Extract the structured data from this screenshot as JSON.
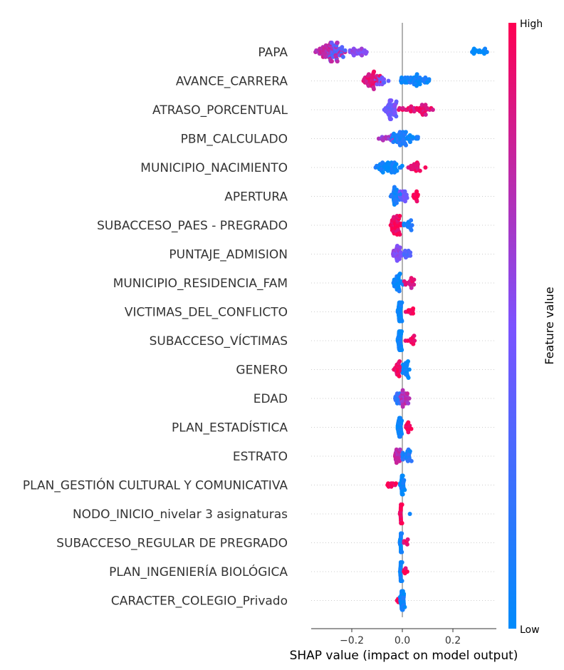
{
  "chart_data": {
    "type": "scatter",
    "subtype": "shap-beeswarm",
    "xlabel": "SHAP value (impact on model output)",
    "x_ticks": [
      -0.2,
      0.0,
      0.2
    ],
    "x_tick_labels": [
      "−0.2",
      "0.0",
      "0.2"
    ],
    "xlim": [
      -0.37,
      0.4
    ],
    "zero_line": 0,
    "colorbar": {
      "label": "Feature value",
      "high_label": "High",
      "low_label": "Low",
      "low_color": "#008bfb",
      "mid_color": "#7c52ff",
      "high_color": "#ff0052"
    },
    "features": [
      {
        "name": "PAPA",
        "clusters": [
          {
            "lo": -0.35,
            "hi": -0.22,
            "n": 60,
            "c": 0.75
          },
          {
            "lo": -0.3,
            "hi": -0.22,
            "n": 25,
            "c": 0.35
          },
          {
            "lo": -0.22,
            "hi": -0.13,
            "n": 22,
            "c": 0.55
          },
          {
            "lo": 0.27,
            "hi": 0.34,
            "n": 14,
            "c": 0.0
          }
        ]
      },
      {
        "name": "AVANCE_CARRERA",
        "clusters": [
          {
            "lo": -0.16,
            "hi": -0.07,
            "n": 40,
            "c": 0.88
          },
          {
            "lo": -0.12,
            "hi": -0.05,
            "n": 12,
            "c": 0.45
          },
          {
            "lo": -0.02,
            "hi": 0.12,
            "n": 45,
            "c": 0.08
          }
        ]
      },
      {
        "name": "ATRASO_PORCENTUAL",
        "clusters": [
          {
            "lo": -0.08,
            "hi": -0.01,
            "n": 45,
            "c": 0.45
          },
          {
            "lo": -0.02,
            "hi": 0.13,
            "n": 38,
            "c": 0.9
          }
        ]
      },
      {
        "name": "PBM_CALCULADO",
        "clusters": [
          {
            "lo": -0.1,
            "hi": -0.02,
            "n": 14,
            "c": 0.65
          },
          {
            "lo": -0.05,
            "hi": 0.04,
            "n": 40,
            "c": 0.1
          },
          {
            "lo": 0.02,
            "hi": 0.07,
            "n": 8,
            "c": 0.05
          }
        ]
      },
      {
        "name": "MUNICIPIO_NACIMIENTO",
        "clusters": [
          {
            "lo": -0.11,
            "hi": 0.01,
            "n": 45,
            "c": 0.05
          },
          {
            "lo": 0.01,
            "hi": 0.1,
            "n": 20,
            "c": 0.92
          }
        ]
      },
      {
        "name": "APERTURA",
        "clusters": [
          {
            "lo": -0.05,
            "hi": 0.0,
            "n": 30,
            "c": 0.1
          },
          {
            "lo": -0.01,
            "hi": 0.02,
            "n": 15,
            "c": 0.45
          },
          {
            "lo": 0.04,
            "hi": 0.07,
            "n": 12,
            "c": 0.97
          }
        ]
      },
      {
        "name": "SUBACCESO_PAES - PREGRADO",
        "clusters": [
          {
            "lo": -0.05,
            "hi": 0.0,
            "n": 40,
            "c": 0.95
          },
          {
            "lo": 0.0,
            "hi": 0.05,
            "n": 14,
            "c": 0.08
          }
        ]
      },
      {
        "name": "PUNTAJE_ADMISION",
        "clusters": [
          {
            "lo": -0.04,
            "hi": 0.01,
            "n": 25,
            "c": 0.55
          },
          {
            "lo": 0.0,
            "hi": 0.04,
            "n": 12,
            "c": 0.3
          }
        ]
      },
      {
        "name": "MUNICIPIO_RESIDENCIA_FAM",
        "clusters": [
          {
            "lo": -0.04,
            "hi": 0.01,
            "n": 30,
            "c": 0.05
          },
          {
            "lo": 0.0,
            "hi": 0.06,
            "n": 14,
            "c": 0.85
          }
        ]
      },
      {
        "name": "VICTIMAS_DEL_CONFLICTO",
        "clusters": [
          {
            "lo": -0.02,
            "hi": 0.0,
            "n": 35,
            "c": 0.05
          },
          {
            "lo": 0.01,
            "hi": 0.05,
            "n": 10,
            "c": 0.98
          }
        ]
      },
      {
        "name": "SUBACCESO_VÍCTIMAS",
        "clusters": [
          {
            "lo": -0.02,
            "hi": 0.0,
            "n": 40,
            "c": 0.04
          },
          {
            "lo": 0.01,
            "hi": 0.06,
            "n": 12,
            "c": 0.95
          }
        ]
      },
      {
        "name": "GENERO",
        "clusters": [
          {
            "lo": -0.04,
            "hi": 0.0,
            "n": 22,
            "c": 0.95
          },
          {
            "lo": 0.0,
            "hi": 0.03,
            "n": 22,
            "c": 0.05
          }
        ]
      },
      {
        "name": "EDAD",
        "clusters": [
          {
            "lo": -0.04,
            "hi": 0.0,
            "n": 15,
            "c": 0.2
          },
          {
            "lo": -0.01,
            "hi": 0.03,
            "n": 25,
            "c": 0.7
          }
        ]
      },
      {
        "name": "PLAN_ESTADÍSTICA",
        "clusters": [
          {
            "lo": -0.02,
            "hi": 0.0,
            "n": 35,
            "c": 0.05
          },
          {
            "lo": 0.01,
            "hi": 0.04,
            "n": 10,
            "c": 0.97
          }
        ]
      },
      {
        "name": "ESTRATO",
        "clusters": [
          {
            "lo": -0.04,
            "hi": 0.0,
            "n": 18,
            "c": 0.75
          },
          {
            "lo": -0.01,
            "hi": 0.04,
            "n": 22,
            "c": 0.1
          }
        ]
      },
      {
        "name": "PLAN_GESTIÓN CULTURAL Y COMUNICATIVA",
        "clusters": [
          {
            "lo": -0.07,
            "hi": -0.01,
            "n": 10,
            "c": 0.97
          },
          {
            "lo": -0.01,
            "hi": 0.01,
            "n": 35,
            "c": 0.05
          }
        ]
      },
      {
        "name": "NODO_INICIO_nivelar 3 asignaturas",
        "clusters": [
          {
            "lo": -0.01,
            "hi": 0.0,
            "n": 40,
            "c": 0.98
          },
          {
            "lo": 0.03,
            "hi": 0.03,
            "n": 1,
            "c": 0.0
          }
        ]
      },
      {
        "name": "SUBACCESO_REGULAR DE PREGRADO",
        "clusters": [
          {
            "lo": -0.01,
            "hi": 0.0,
            "n": 35,
            "c": 0.05
          },
          {
            "lo": 0.0,
            "hi": 0.03,
            "n": 6,
            "c": 0.9
          }
        ]
      },
      {
        "name": "PLAN_INGENIERÍA BIOLÓGICA",
        "clusters": [
          {
            "lo": -0.01,
            "hi": 0.0,
            "n": 35,
            "c": 0.05
          },
          {
            "lo": 0.0,
            "hi": 0.02,
            "n": 5,
            "c": 0.95
          }
        ]
      },
      {
        "name": "CARACTER_COLEGIO_Privado",
        "clusters": [
          {
            "lo": -0.01,
            "hi": 0.01,
            "n": 32,
            "c": 0.05
          },
          {
            "lo": -0.03,
            "hi": -0.01,
            "n": 4,
            "c": 0.97
          }
        ]
      }
    ]
  }
}
